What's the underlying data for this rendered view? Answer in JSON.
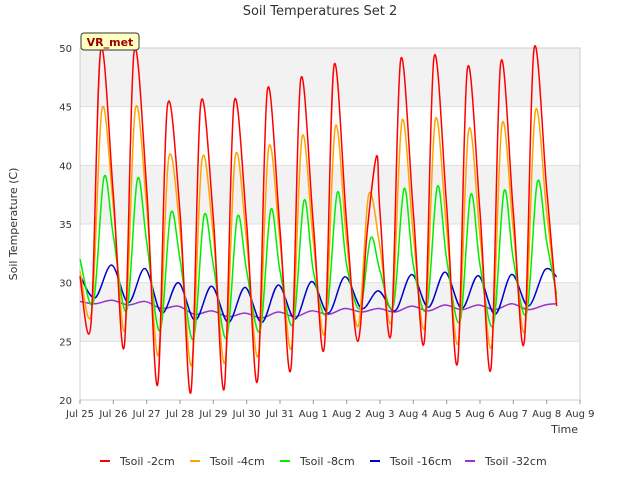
{
  "chart_data": {
    "type": "line",
    "title": "Soil Temperatures Set 2",
    "xlabel": "Time",
    "ylabel": "Soil Temperature (C)",
    "station_label": "VR_met",
    "ylim": [
      20,
      50
    ],
    "xlim": [
      0,
      15
    ],
    "x_ticks": [
      {
        "x": 0,
        "label": "Jul 25"
      },
      {
        "x": 1,
        "label": "Jul 26"
      },
      {
        "x": 2,
        "label": "Jul 27"
      },
      {
        "x": 3,
        "label": "Jul 28"
      },
      {
        "x": 4,
        "label": "Jul 29"
      },
      {
        "x": 5,
        "label": "Jul 30"
      },
      {
        "x": 6,
        "label": "Jul 31"
      },
      {
        "x": 7,
        "label": "Aug 1"
      },
      {
        "x": 8,
        "label": "Aug 2"
      },
      {
        "x": 9,
        "label": "Aug 3"
      },
      {
        "x": 10,
        "label": "Aug 4"
      },
      {
        "x": 11,
        "label": "Aug 5"
      },
      {
        "x": 12,
        "label": "Aug 6"
      },
      {
        "x": 13,
        "label": "Aug 7"
      },
      {
        "x": 14,
        "label": "Aug 8"
      },
      {
        "x": 15,
        "label": "Aug 9"
      }
    ],
    "y_ticks": [
      20,
      25,
      30,
      35,
      40,
      45,
      50
    ],
    "grid": "horizontal bands",
    "legend_position": "bottom",
    "series": [
      {
        "name": "Tsoil -2cm",
        "color": "#ff0000",
        "x": [
          0.0,
          0.33,
          0.62,
          1.0,
          1.33,
          1.62,
          2.0,
          2.33,
          2.62,
          3.0,
          3.33,
          3.62,
          4.0,
          4.33,
          4.62,
          5.0,
          5.33,
          5.62,
          6.0,
          6.33,
          6.62,
          7.0,
          7.33,
          7.62,
          8.0,
          8.33,
          8.62,
          8.9,
          9.0,
          9.33,
          9.62,
          10.0,
          10.33,
          10.62,
          11.0,
          11.33,
          11.62,
          12.0,
          12.33,
          12.62,
          13.0,
          13.33,
          13.62,
          14.0,
          14.3
        ],
        "y": [
          30.5,
          26.5,
          49.8,
          37.5,
          24.6,
          49.6,
          38.0,
          21.3,
          45.0,
          36.0,
          20.7,
          45.2,
          35.5,
          21.0,
          45.3,
          35.0,
          21.7,
          46.4,
          34.5,
          22.7,
          47.3,
          35.0,
          24.5,
          48.5,
          35.0,
          25.0,
          34.5,
          40.8,
          36.0,
          25.6,
          49.0,
          36.0,
          25.0,
          49.2,
          36.5,
          23.2,
          48.2,
          36.0,
          22.7,
          48.7,
          36.0,
          25.0,
          49.9,
          38.0,
          28.0
        ]
      },
      {
        "name": "Tsoil -4cm",
        "color": "#ffa500",
        "x": [
          0.0,
          0.35,
          0.66,
          1.0,
          1.35,
          1.66,
          2.0,
          2.35,
          2.66,
          3.0,
          3.35,
          3.66,
          4.0,
          4.35,
          4.66,
          5.0,
          5.35,
          5.66,
          6.0,
          6.35,
          6.66,
          7.0,
          7.35,
          7.66,
          8.0,
          8.35,
          8.66,
          9.0,
          9.35,
          9.66,
          10.0,
          10.35,
          10.66,
          11.0,
          11.35,
          11.66,
          12.0,
          12.35,
          12.66,
          13.0,
          13.35,
          13.66,
          14.0,
          14.3
        ],
        "y": [
          31.0,
          27.5,
          44.8,
          36.5,
          26.0,
          44.8,
          36.5,
          23.8,
          40.6,
          34.5,
          23.0,
          40.5,
          34.0,
          23.2,
          40.8,
          33.5,
          23.8,
          41.5,
          33.5,
          24.5,
          42.4,
          33.5,
          25.8,
          43.3,
          33.5,
          26.3,
          37.5,
          33.0,
          26.8,
          43.8,
          34.0,
          26.3,
          43.9,
          34.5,
          24.9,
          43.0,
          34.0,
          24.6,
          43.5,
          34.5,
          26.0,
          44.6,
          36.0,
          28.5
        ]
      },
      {
        "name": "Tsoil -8cm",
        "color": "#00ee00",
        "x": [
          0.0,
          0.4,
          0.72,
          1.0,
          1.4,
          1.72,
          2.0,
          2.4,
          2.72,
          3.0,
          3.4,
          3.72,
          4.0,
          4.4,
          4.72,
          5.0,
          5.4,
          5.72,
          6.0,
          6.4,
          6.72,
          7.0,
          7.4,
          7.72,
          8.0,
          8.4,
          8.72,
          9.0,
          9.4,
          9.72,
          10.0,
          10.4,
          10.72,
          11.0,
          11.4,
          11.72,
          12.0,
          12.4,
          12.72,
          13.0,
          13.4,
          13.72,
          14.0,
          14.3
        ],
        "y": [
          32.0,
          28.3,
          39.0,
          34.0,
          27.6,
          38.8,
          33.5,
          25.9,
          35.9,
          32.0,
          25.2,
          35.7,
          31.5,
          25.3,
          35.6,
          31.0,
          25.9,
          36.2,
          31.0,
          26.5,
          37.0,
          31.0,
          27.5,
          37.7,
          31.5,
          27.8,
          33.8,
          31.0,
          28.0,
          38.0,
          31.5,
          27.8,
          38.2,
          32.0,
          26.7,
          37.5,
          31.5,
          26.4,
          37.8,
          32.0,
          27.4,
          38.6,
          33.5,
          29.0
        ]
      },
      {
        "name": "Tsoil -16cm",
        "color": "#0000cc",
        "x": [
          0.0,
          0.45,
          0.95,
          1.45,
          1.95,
          2.45,
          2.95,
          3.45,
          3.95,
          4.45,
          4.95,
          5.45,
          5.95,
          6.45,
          6.95,
          7.45,
          7.95,
          8.45,
          8.95,
          9.45,
          9.95,
          10.45,
          10.95,
          11.45,
          11.95,
          12.45,
          12.95,
          13.45,
          13.95,
          14.3
        ],
        "y": [
          30.6,
          28.7,
          31.5,
          28.3,
          31.2,
          27.4,
          30.0,
          26.8,
          29.7,
          26.6,
          29.6,
          26.6,
          29.8,
          26.9,
          30.1,
          27.4,
          30.5,
          27.8,
          29.3,
          27.6,
          30.7,
          27.9,
          30.9,
          27.8,
          30.6,
          27.3,
          30.7,
          28.0,
          31.1,
          30.5
        ]
      },
      {
        "name": "Tsoil -32cm",
        "color": "#9932cc",
        "x": [
          0.0,
          0.45,
          0.95,
          1.45,
          1.95,
          2.45,
          2.95,
          3.45,
          3.95,
          4.45,
          4.95,
          5.45,
          5.95,
          6.45,
          6.95,
          7.45,
          7.95,
          8.45,
          8.95,
          9.45,
          9.95,
          10.45,
          10.95,
          11.45,
          11.95,
          12.45,
          12.95,
          13.45,
          13.95,
          14.3
        ],
        "y": [
          28.4,
          28.2,
          28.5,
          28.1,
          28.4,
          27.8,
          28.0,
          27.3,
          27.6,
          27.1,
          27.4,
          27.0,
          27.5,
          27.1,
          27.6,
          27.3,
          27.8,
          27.5,
          27.8,
          27.5,
          28.0,
          27.6,
          28.1,
          27.7,
          28.1,
          27.7,
          28.2,
          27.7,
          28.1,
          28.2
        ]
      }
    ]
  }
}
